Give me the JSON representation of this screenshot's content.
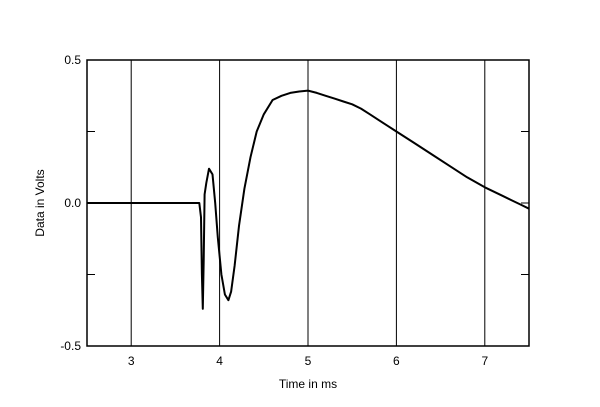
{
  "chart_data": {
    "type": "line",
    "title": "",
    "xlabel": "Time in ms",
    "ylabel": "Data in Volts",
    "xlim": [
      2.5,
      7.5
    ],
    "ylim": [
      -0.5,
      0.5
    ],
    "x_ticks": [
      3,
      4,
      5,
      6,
      7
    ],
    "x_tick_labels": [
      "3",
      "4",
      "5",
      "6",
      "7"
    ],
    "y_ticks": [
      -0.5,
      -0.25,
      0,
      0.25,
      0.5
    ],
    "y_tick_labels": [
      "-0.5",
      "",
      "0.0",
      "",
      "0.5"
    ],
    "grid": "vertical",
    "line_color": "#000000",
    "series": [
      {
        "x": [
          2.5,
          3.0,
          3.5,
          3.77,
          3.79,
          3.8,
          3.81,
          3.82,
          3.83,
          3.85,
          3.88,
          3.92,
          3.95,
          3.98,
          4.02,
          4.06,
          4.1,
          4.13,
          4.17,
          4.22,
          4.28,
          4.35,
          4.42,
          4.5,
          4.6,
          4.7,
          4.8,
          4.9,
          5.0,
          5.1,
          5.2,
          5.3,
          5.4,
          5.5,
          5.6,
          5.7,
          5.8,
          5.9,
          6.0,
          6.2,
          6.4,
          6.6,
          6.8,
          7.0,
          7.2,
          7.3,
          7.4,
          7.5
        ],
        "y": [
          0.0,
          0.0,
          0.0,
          0.0,
          -0.05,
          -0.25,
          -0.37,
          -0.2,
          0.03,
          0.07,
          0.12,
          0.1,
          0.0,
          -0.12,
          -0.25,
          -0.32,
          -0.34,
          -0.31,
          -0.22,
          -0.08,
          0.05,
          0.16,
          0.25,
          0.31,
          0.36,
          0.375,
          0.385,
          0.39,
          0.393,
          0.385,
          0.375,
          0.365,
          0.355,
          0.345,
          0.33,
          0.31,
          0.29,
          0.27,
          0.25,
          0.21,
          0.17,
          0.13,
          0.09,
          0.055,
          0.025,
          0.01,
          -0.005,
          -0.02
        ]
      }
    ]
  }
}
